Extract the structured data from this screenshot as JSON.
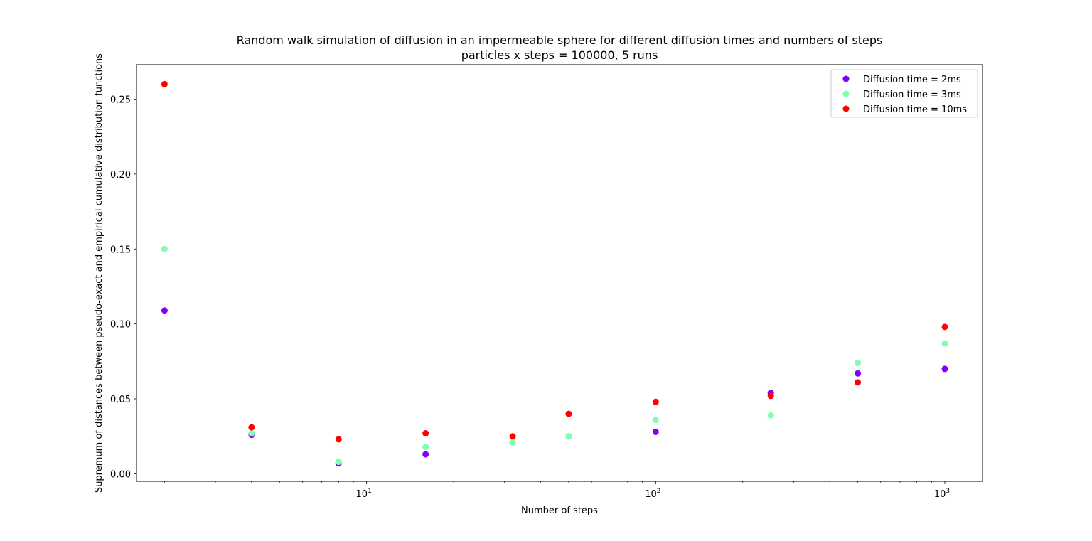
{
  "chart_data": {
    "type": "scatter",
    "title": "Random walk simulation of diffusion in an impermeable sphere for different diffusion times and numbers of steps",
    "subtitle": "particles x steps = 100000, 5 runs",
    "xlabel": "Number of steps",
    "ylabel": "Supremum of distances between pseudo-exact and empirical cumulative distribution functions",
    "xscale": "log",
    "xlim": [
      1.6,
      1350
    ],
    "ylim": [
      -0.005,
      0.273
    ],
    "x_ticks": [
      {
        "base": "10",
        "exp": "1",
        "value": 10
      },
      {
        "base": "10",
        "exp": "2",
        "value": 100
      },
      {
        "base": "10",
        "exp": "3",
        "value": 1000
      }
    ],
    "y_ticks": [
      {
        "label": "0.00",
        "value": 0.0
      },
      {
        "label": "0.05",
        "value": 0.05
      },
      {
        "label": "0.10",
        "value": 0.1
      },
      {
        "label": "0.15",
        "value": 0.15
      },
      {
        "label": "0.20",
        "value": 0.2
      },
      {
        "label": "0.25",
        "value": 0.25
      }
    ],
    "grid": false,
    "legend_position": "top-right",
    "x": [
      2,
      4,
      8,
      16,
      32,
      50,
      100,
      250,
      500,
      1000
    ],
    "series": [
      {
        "name": "Diffusion time = 2ms",
        "color": "#8000ff",
        "values": [
          0.109,
          0.026,
          0.007,
          0.013,
          0.021,
          0.025,
          0.028,
          0.054,
          0.067,
          0.07
        ]
      },
      {
        "name": "Diffusion time = 3ms",
        "color": "#80ffb4",
        "values": [
          0.15,
          0.027,
          0.008,
          0.018,
          0.021,
          0.025,
          0.036,
          0.039,
          0.074,
          0.087
        ]
      },
      {
        "name": "Diffusion time = 10ms",
        "color": "#ff0000",
        "values": [
          0.26,
          0.031,
          0.023,
          0.027,
          0.025,
          0.04,
          0.048,
          0.052,
          0.061,
          0.098
        ]
      }
    ]
  }
}
